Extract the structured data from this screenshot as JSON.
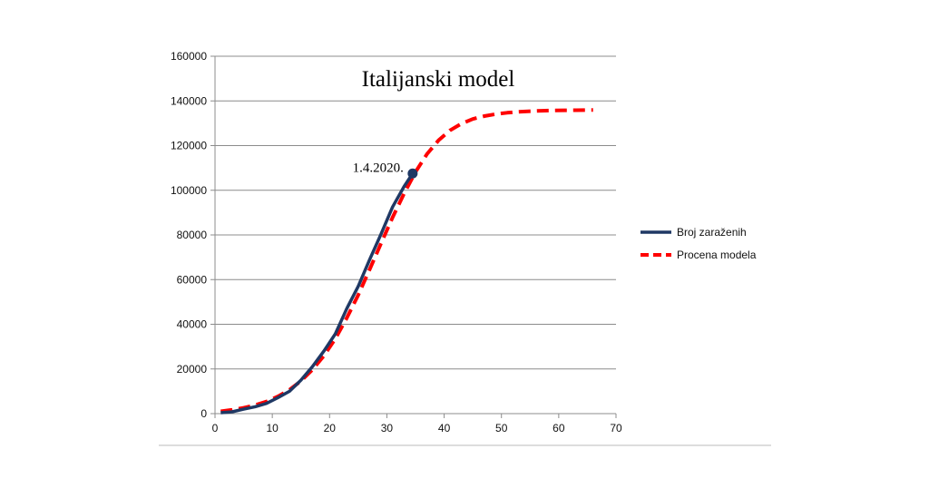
{
  "chart_data": {
    "type": "line",
    "title": "Italijanski model",
    "xlabel": "",
    "ylabel": "",
    "xlim": [
      0,
      70
    ],
    "ylim": [
      0,
      160000
    ],
    "x_ticks": [
      "0",
      "10",
      "20",
      "30",
      "40",
      "50",
      "60",
      "70"
    ],
    "y_ticks": [
      "0",
      "20000",
      "40000",
      "60000",
      "80000",
      "100000",
      "120000",
      "140000",
      "160000"
    ],
    "grid": "horizontal",
    "legend_position": "right",
    "series": [
      {
        "name": "Broj zaraženih",
        "color": "#1f3864",
        "style": "solid",
        "x": [
          1,
          3,
          5,
          7,
          9,
          11,
          13,
          15,
          17,
          19,
          21,
          23,
          25,
          27,
          29,
          31,
          33,
          34.5
        ],
        "y": [
          400,
          800,
          2000,
          3100,
          4600,
          7200,
          10000,
          15000,
          21000,
          28000,
          35700,
          47000,
          57000,
          69000,
          80500,
          92500,
          101700,
          107500
        ]
      },
      {
        "name": "Procena modela",
        "color": "#ff0000",
        "style": "dashed",
        "x": [
          1,
          3,
          5,
          7,
          9,
          11,
          13,
          15,
          17,
          19,
          21,
          23,
          25,
          27,
          29,
          31,
          33,
          35,
          37,
          39,
          41,
          43,
          45,
          47,
          49,
          51,
          53,
          55,
          57,
          59,
          61,
          63,
          65,
          66
        ],
        "y": [
          1000,
          1700,
          2600,
          3800,
          5400,
          7700,
          10700,
          14600,
          19600,
          25900,
          33500,
          42800,
          53100,
          64600,
          76300,
          87800,
          98500,
          108200,
          116200,
          122300,
          126800,
          129800,
          131900,
          133200,
          134100,
          134700,
          135100,
          135400,
          135600,
          135700,
          135800,
          135850,
          135900,
          135900
        ]
      }
    ],
    "annotations": [
      {
        "text": "1.4.2020.",
        "x": 34.5,
        "y": 107500
      }
    ]
  }
}
